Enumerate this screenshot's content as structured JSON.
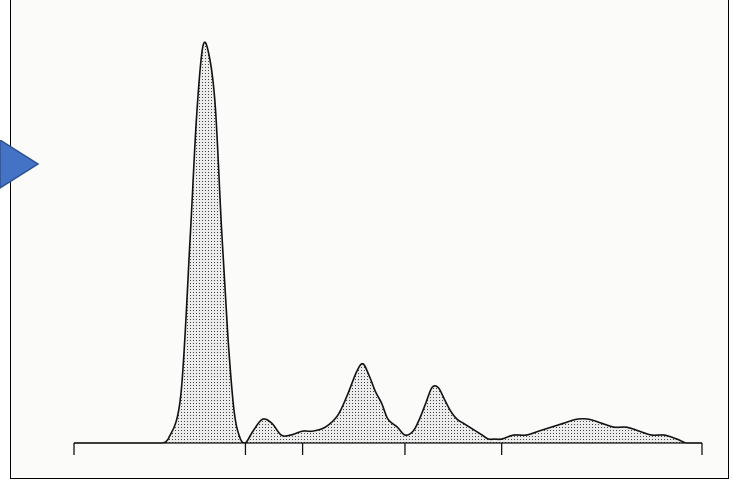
{
  "chart_data": {
    "type": "area",
    "title": "",
    "xlabel": "",
    "ylabel": "",
    "grid": false,
    "legend": "none",
    "xlim": [
      0,
      100
    ],
    "ylim": [
      0,
      100
    ],
    "x_ticks": [
      0,
      27.3,
      36.4,
      52.7,
      68.1,
      100
    ],
    "series": [
      {
        "name": "",
        "x": [
          0,
          7,
          12,
          14,
          15,
          17,
          18.5,
          19.5,
          20.5,
          21.5,
          22.5,
          23.5,
          24.5,
          25.5,
          26.5,
          27.3,
          28.5,
          30,
          31.5,
          33,
          34.5,
          36.4,
          38,
          40,
          42,
          43.5,
          45,
          46,
          47,
          48,
          49,
          50,
          51.5,
          52.7,
          54,
          55,
          56,
          57,
          58,
          59,
          60,
          61,
          62,
          63,
          64,
          65,
          66,
          67,
          68.1,
          70,
          72,
          74,
          76,
          78,
          80,
          82,
          84,
          86,
          88,
          90,
          92,
          94,
          96,
          97.5,
          99,
          100
        ],
        "values": [
          0,
          0,
          0,
          0,
          1,
          12,
          52,
          82,
          100,
          98,
          85,
          54,
          27,
          8,
          1,
          0,
          3,
          6,
          5,
          2,
          2,
          3,
          3,
          4,
          7,
          12,
          18,
          20,
          17,
          13,
          10,
          6,
          4,
          2,
          3,
          6,
          10,
          14,
          14,
          11,
          8,
          6,
          5,
          4,
          3,
          2,
          1,
          1,
          1,
          2,
          2,
          3,
          4,
          5,
          6,
          6,
          5,
          4,
          4,
          3,
          2,
          2,
          1,
          0,
          0,
          0
        ]
      }
    ]
  },
  "colors": {
    "fill_dots": "#333333",
    "fill_background": "#d9d9d9",
    "line": "#111111",
    "arrow_fill": "#4472c4",
    "arrow_stroke": "#2f528f",
    "page": "#fbfbfa"
  }
}
